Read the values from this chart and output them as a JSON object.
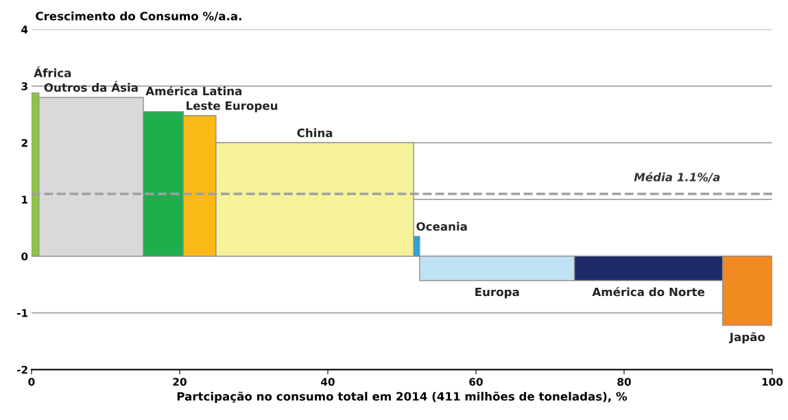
{
  "chart_data": {
    "type": "histogram",
    "ylabel": "Crescimento do Consumo %/a.a.",
    "xlabel": "Partcipação no consumo total em 2014 (411 milhões de toneladas), %",
    "bins": [
      0,
      1.0,
      15.1,
      20.5,
      24.9,
      51.6,
      52.4,
      73.3,
      93.3,
      100
    ],
    "values": [
      2.88,
      2.8,
      2.55,
      2.48,
      2.0,
      0.35,
      -0.43,
      -0.43,
      -1.22
    ],
    "colors": [
      "#8cc63f",
      "#d9d9d9",
      "#1fae4b",
      "#fbb917",
      "#f6f29a",
      "#2aa3d6",
      "#bfe3f4",
      "#1f2a6b",
      "#f28a22"
    ],
    "annotations": [
      {
        "text": "África",
        "x": 0.5,
        "y": 2.88
      },
      {
        "text": "Outros da Ásia",
        "x": 8.05,
        "y": 2.8
      },
      {
        "text": "América Latina",
        "x": 17.8,
        "y": 2.55
      },
      {
        "text": "Leste Europeu",
        "x": 22.7,
        "y": 2.48
      },
      {
        "text": "China",
        "x": 38.25,
        "y": 2.0
      },
      {
        "text": "Oceania",
        "x": 52.0,
        "y": 0.35
      },
      {
        "text": "Europa",
        "x": 62.85,
        "y": -0.43
      },
      {
        "text": "América do Norte",
        "x": 83.3,
        "y": -0.43
      },
      {
        "text": "Japão",
        "x": 96.65,
        "y": -1.22
      }
    ],
    "ref_lines": [
      {
        "axis": "y",
        "value": 1.1,
        "label": "Média 1.1%/a",
        "color": "#a0a0a0",
        "line_style": "dashed"
      }
    ],
    "xlim": [
      0,
      100
    ],
    "xticks": [
      0,
      20,
      40,
      60,
      80,
      100
    ],
    "ylim": [
      -2,
      4
    ],
    "yticks": [
      -2,
      -1,
      0,
      1,
      2,
      3,
      4
    ],
    "grid": "y"
  }
}
